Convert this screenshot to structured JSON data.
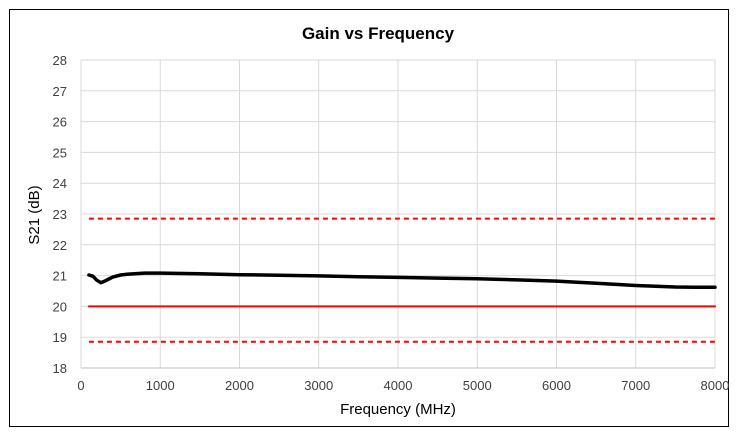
{
  "chart_data": {
    "type": "line",
    "title": "Gain vs Frequency",
    "xlabel": "Frequency (MHz)",
    "ylabel": "S21 (dB)",
    "xlim": [
      0,
      8000
    ],
    "ylim": [
      18,
      28
    ],
    "xticks": [
      0,
      1000,
      2000,
      3000,
      4000,
      5000,
      6000,
      7000,
      8000
    ],
    "yticks": [
      18,
      19,
      20,
      21,
      22,
      23,
      24,
      25,
      26,
      27,
      28
    ],
    "grid": true,
    "legend": "none",
    "series": [
      {
        "style": "solid",
        "color": "#000000",
        "x": [
          100,
          150,
          200,
          250,
          300,
          400,
          500,
          600,
          800,
          1000,
          1500,
          2000,
          2500,
          3000,
          3500,
          4000,
          4500,
          5000,
          5500,
          6000,
          6500,
          7000,
          7500,
          7750,
          8000
        ],
        "y": [
          21.02,
          20.98,
          20.85,
          20.77,
          20.82,
          20.95,
          21.02,
          21.05,
          21.08,
          21.08,
          21.06,
          21.03,
          21.01,
          20.99,
          20.96,
          20.94,
          20.92,
          20.9,
          20.86,
          20.82,
          20.75,
          20.68,
          20.63,
          20.62,
          20.62
        ]
      },
      {
        "style": "solid",
        "color": "#ff0000",
        "x": [
          100,
          8000
        ],
        "y": [
          20.0,
          20.0
        ]
      },
      {
        "style": "dashed",
        "color": "#ff0000",
        "x": [
          100,
          8000
        ],
        "y": [
          22.85,
          22.85
        ]
      },
      {
        "style": "dashed",
        "color": "#ff0000",
        "x": [
          100,
          8000
        ],
        "y": [
          18.85,
          18.85
        ]
      }
    ]
  }
}
